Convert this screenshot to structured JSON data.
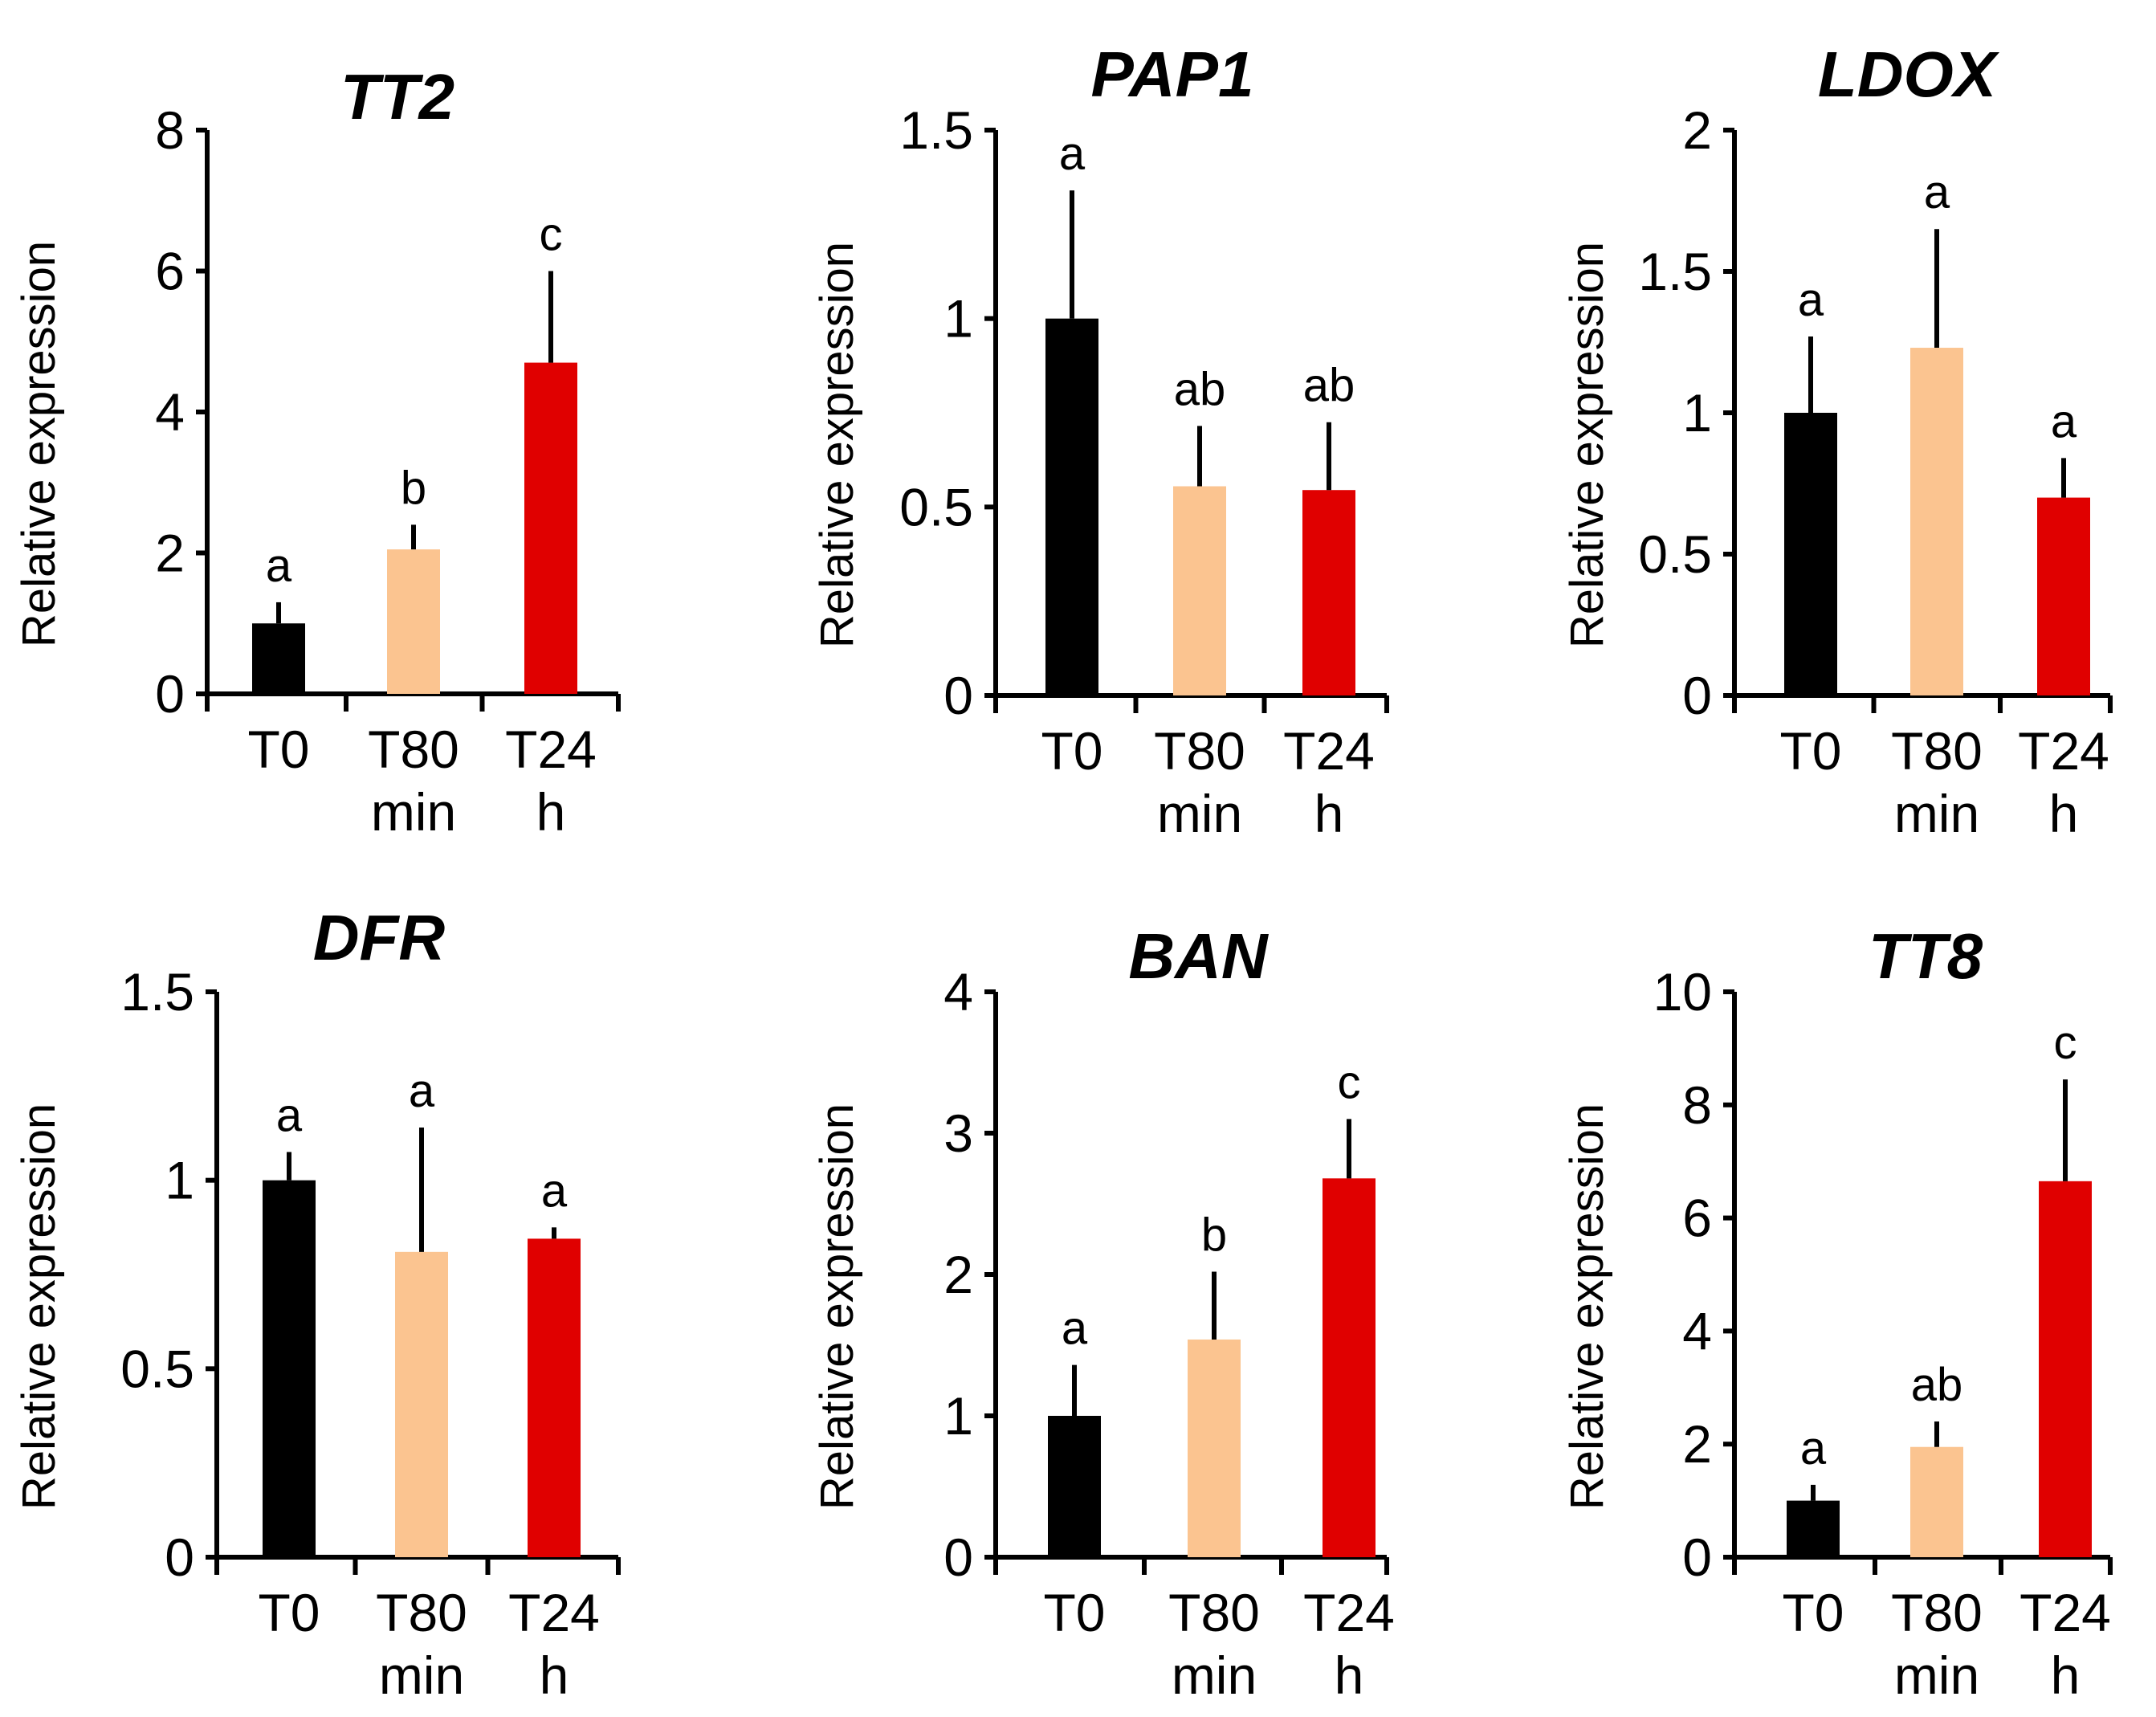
{
  "figure": {
    "colors": {
      "T0": "#000000",
      "T80": "#FBC490",
      "T24": "#E00000"
    }
  },
  "chart_data": [
    {
      "type": "bar",
      "title": "TT2",
      "ylabel": "Relative expression",
      "ylim": [
        0,
        8
      ],
      "yticks": [
        "0",
        "2",
        "4",
        "6",
        "8"
      ],
      "categories": [
        [
          "T0"
        ],
        [
          "T80",
          "min"
        ],
        [
          "T24",
          "h"
        ]
      ],
      "values": [
        1.0,
        2.05,
        4.7
      ],
      "errors": [
        0.3,
        0.35,
        1.3
      ],
      "significance": [
        "a",
        "b",
        "c"
      ]
    },
    {
      "type": "bar",
      "title": "PAP1",
      "ylabel": "Relative expression",
      "ylim": [
        0,
        1.5
      ],
      "yticks": [
        "0",
        "0.5",
        "1",
        "1.5"
      ],
      "categories": [
        [
          "T0"
        ],
        [
          "T80",
          "min"
        ],
        [
          "T24",
          "h"
        ]
      ],
      "values": [
        1.0,
        0.555,
        0.545
      ],
      "errors": [
        0.34,
        0.16,
        0.18
      ],
      "significance": [
        "a",
        "ab",
        "ab"
      ]
    },
    {
      "type": "bar",
      "title": "LDOX",
      "ylabel": "Relative expression",
      "ylim": [
        0,
        2
      ],
      "yticks": [
        "0",
        "0.5",
        "1",
        "1.5",
        "2"
      ],
      "categories": [
        [
          "T0"
        ],
        [
          "T80",
          "min"
        ],
        [
          "T24",
          "h"
        ]
      ],
      "values": [
        1.0,
        1.23,
        0.7
      ],
      "errors": [
        0.27,
        0.42,
        0.14
      ],
      "significance": [
        "a",
        "a",
        "a"
      ]
    },
    {
      "type": "bar",
      "title": "DFR",
      "ylabel": "Relative expression",
      "ylim": [
        0,
        1.5
      ],
      "yticks": [
        "0",
        "0.5",
        "1",
        "1.5"
      ],
      "categories": [
        [
          "T0"
        ],
        [
          "T80",
          "min"
        ],
        [
          "T24",
          "h"
        ]
      ],
      "values": [
        1.0,
        0.81,
        0.845
      ],
      "errors": [
        0.075,
        0.33,
        0.03
      ],
      "significance": [
        "a",
        "a",
        "a"
      ]
    },
    {
      "type": "bar",
      "title": "BAN",
      "ylabel": "Relative expression",
      "ylim": [
        0,
        4
      ],
      "yticks": [
        "0",
        "1",
        "2",
        "3",
        "4"
      ],
      "categories": [
        [
          "T0"
        ],
        [
          "T80",
          "min"
        ],
        [
          "T24",
          "h"
        ]
      ],
      "values": [
        1.0,
        1.54,
        2.68
      ],
      "errors": [
        0.36,
        0.48,
        0.42
      ],
      "significance": [
        "a",
        "b",
        "c"
      ]
    },
    {
      "type": "bar",
      "title": "TT8",
      "ylabel": "Relative expression",
      "ylim": [
        0,
        10
      ],
      "yticks": [
        "0",
        "2",
        "4",
        "6",
        "8",
        "10"
      ],
      "categories": [
        [
          "T0"
        ],
        [
          "T80",
          "min"
        ],
        [
          "T24",
          "h"
        ]
      ],
      "values": [
        1.0,
        1.95,
        6.65
      ],
      "errors": [
        0.28,
        0.45,
        1.8
      ],
      "significance": [
        "a",
        "ab",
        "c"
      ]
    }
  ]
}
